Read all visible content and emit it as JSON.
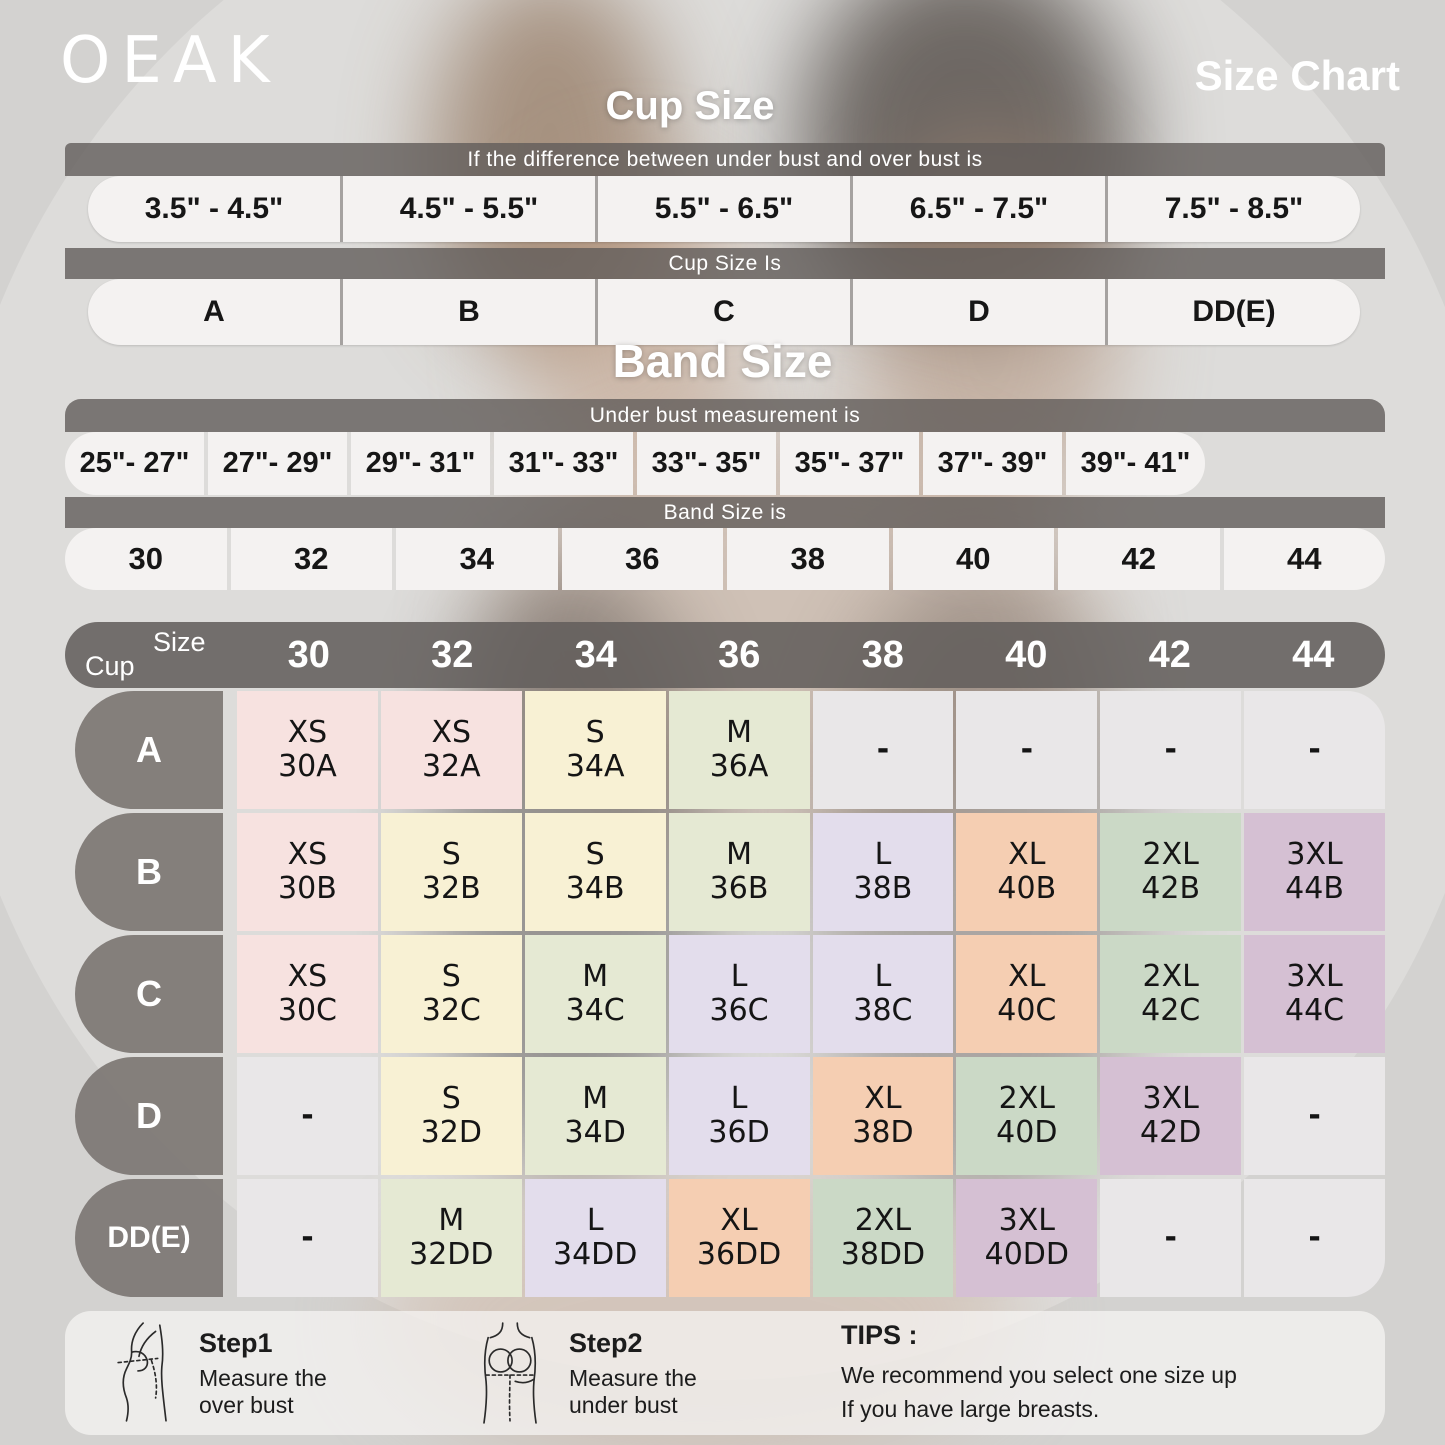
{
  "brand": "OEAK",
  "page_title": "Size Chart",
  "cup_size_section": {
    "heading": "Cup Size",
    "condition_label": "If the  difference between under bust and over bust is",
    "ranges": [
      "3.5\" - 4.5\"",
      "4.5\" - 5.5\"",
      "5.5\" - 6.5\"",
      "6.5\" - 7.5\"",
      "7.5\" - 8.5\""
    ],
    "result_label": "Cup Size Is",
    "cups": [
      "A",
      "B",
      "C",
      "D",
      "DD(E)"
    ]
  },
  "band_size_section": {
    "heading": "Band Size",
    "condition_label": "Under bust measurement is",
    "ranges": [
      "25\"- 27\"",
      "27\"- 29\"",
      "29\"- 31\"",
      "31\"- 33\"",
      "33\"- 35\"",
      "35\"- 37\"",
      "37\"- 39\"",
      "39\"- 41\""
    ],
    "result_label": "Band Size is",
    "bands": [
      "30",
      "32",
      "34",
      "36",
      "38",
      "40",
      "42",
      "44"
    ]
  },
  "matrix": {
    "corner_top": "Size",
    "corner_bottom": "Cup",
    "columns": [
      "30",
      "32",
      "34",
      "36",
      "38",
      "40",
      "42",
      "44"
    ],
    "rows": [
      {
        "cup": "A",
        "cells": [
          {
            "size": "XS",
            "code": "30A"
          },
          {
            "size": "XS",
            "code": "32A"
          },
          {
            "size": "S",
            "code": "34A"
          },
          {
            "size": "M",
            "code": "36A"
          },
          {
            "size": "-",
            "code": ""
          },
          {
            "size": "-",
            "code": ""
          },
          {
            "size": "-",
            "code": ""
          },
          {
            "size": "-",
            "code": ""
          }
        ]
      },
      {
        "cup": "B",
        "cells": [
          {
            "size": "XS",
            "code": "30B"
          },
          {
            "size": "S",
            "code": "32B"
          },
          {
            "size": "S",
            "code": "34B"
          },
          {
            "size": "M",
            "code": "36B"
          },
          {
            "size": "L",
            "code": "38B"
          },
          {
            "size": "XL",
            "code": "40B"
          },
          {
            "size": "2XL",
            "code": "42B"
          },
          {
            "size": "3XL",
            "code": "44B"
          }
        ]
      },
      {
        "cup": "C",
        "cells": [
          {
            "size": "XS",
            "code": "30C"
          },
          {
            "size": "S",
            "code": "32C"
          },
          {
            "size": "M",
            "code": "34C"
          },
          {
            "size": "L",
            "code": "36C"
          },
          {
            "size": "L",
            "code": "38C"
          },
          {
            "size": "XL",
            "code": "40C"
          },
          {
            "size": "2XL",
            "code": "42C"
          },
          {
            "size": "3XL",
            "code": "44C"
          }
        ]
      },
      {
        "cup": "D",
        "cells": [
          {
            "size": "-",
            "code": ""
          },
          {
            "size": "S",
            "code": "32D"
          },
          {
            "size": "M",
            "code": "34D"
          },
          {
            "size": "L",
            "code": "36D"
          },
          {
            "size": "XL",
            "code": "38D"
          },
          {
            "size": "2XL",
            "code": "40D"
          },
          {
            "size": "3XL",
            "code": "42D"
          },
          {
            "size": "-",
            "code": ""
          }
        ]
      },
      {
        "cup": "DD(E)",
        "cells": [
          {
            "size": "-",
            "code": ""
          },
          {
            "size": "M",
            "code": "32DD"
          },
          {
            "size": "L",
            "code": "34DD"
          },
          {
            "size": "XL",
            "code": "36DD"
          },
          {
            "size": "2XL",
            "code": "38DD"
          },
          {
            "size": "3XL",
            "code": "40DD"
          },
          {
            "size": "-",
            "code": ""
          },
          {
            "size": "-",
            "code": ""
          }
        ]
      }
    ]
  },
  "size_colors": {
    "XS": "#f7e2e0",
    "S": "#f8f1d4",
    "M": "#e5e9d3",
    "L": "#e3ddec",
    "XL": "#f5ceb2",
    "2XL": "#cbd9c6",
    "3XL": "#d5c0d3",
    "-": "#e9e7e8"
  },
  "footer": {
    "steps": [
      {
        "title": "Step1",
        "line1": "Measure the",
        "line2": "over bust",
        "icon": "over-bust-measure-icon"
      },
      {
        "title": "Step2",
        "line1": "Measure the",
        "line2": "under bust",
        "icon": "under-bust-measure-icon"
      }
    ],
    "tips_title": "TIPS :",
    "tips_line1": "We recommend you select one size up",
    "tips_line2": "If you have large breasts."
  },
  "chart_data": [
    {
      "type": "table",
      "title": "Cup Size",
      "note": "If the difference between under bust and over bust is",
      "columns": [
        "3.5\" - 4.5\"",
        "4.5\" - 5.5\"",
        "5.5\" - 6.5\"",
        "6.5\" - 7.5\"",
        "7.5\" - 8.5\""
      ],
      "rows": [
        [
          "A",
          "B",
          "C",
          "D",
          "DD(E)"
        ]
      ]
    },
    {
      "type": "table",
      "title": "Band Size",
      "note": "Under bust measurement is",
      "columns": [
        "25\"- 27\"",
        "27\"- 29\"",
        "29\"- 31\"",
        "31\"- 33\"",
        "33\"- 35\"",
        "35\"- 37\"",
        "37\"- 39\"",
        "39\"- 41\""
      ],
      "rows": [
        [
          "30",
          "32",
          "34",
          "36",
          "38",
          "40",
          "42",
          "44"
        ]
      ]
    },
    {
      "type": "table",
      "title": "Size lookup by band and cup",
      "columns": [
        "Cup",
        "30",
        "32",
        "34",
        "36",
        "38",
        "40",
        "42",
        "44"
      ],
      "rows": [
        [
          "A",
          "XS 30A",
          "XS 32A",
          "S 34A",
          "M 36A",
          "-",
          "-",
          "-",
          "-"
        ],
        [
          "B",
          "XS 30B",
          "S 32B",
          "S 34B",
          "M 36B",
          "L 38B",
          "XL 40B",
          "2XL 42B",
          "3XL 44B"
        ],
        [
          "C",
          "XS 30C",
          "S 32C",
          "M 34C",
          "L 36C",
          "L 38C",
          "XL 40C",
          "2XL 42C",
          "3XL 44C"
        ],
        [
          "D",
          "-",
          "S 32D",
          "M 34D",
          "L 36D",
          "XL 38D",
          "2XL 40D",
          "3XL 42D",
          "-"
        ],
        [
          "DD(E)",
          "-",
          "M 32DD",
          "L 34DD",
          "XL 36DD",
          "2XL 38DD",
          "3XL 40DD",
          "-",
          "-"
        ]
      ]
    }
  ]
}
